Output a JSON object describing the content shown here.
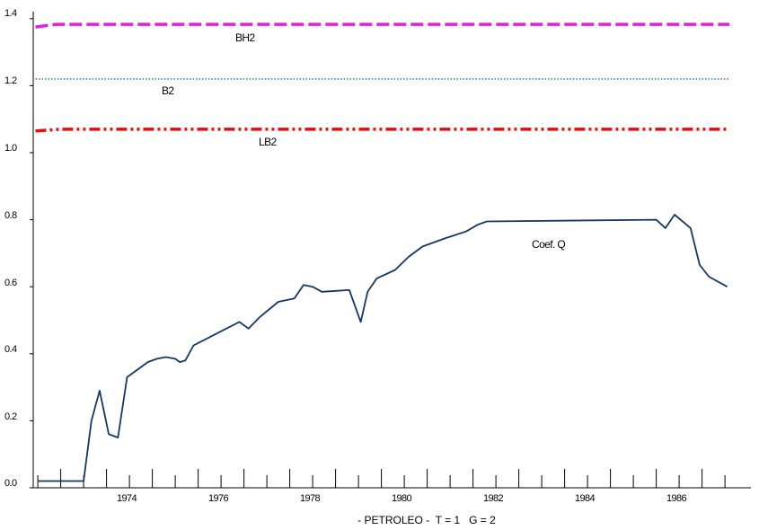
{
  "chart_data": {
    "type": "line",
    "title": "",
    "xlabel": "- PETROLEO -  T = 1   G = 2",
    "ylabel": "",
    "xlim": [
      1972.4,
      1987.6
    ],
    "ylim": [
      0.0,
      1.4
    ],
    "x_ticks": [
      "1974",
      "1976",
      "1978",
      "1980",
      "1982",
      "1984",
      "1986"
    ],
    "y_ticks": [
      "0.0",
      "0.2",
      "0.4",
      "0.6",
      "0.8",
      "1.0",
      "1.2",
      "1.4"
    ],
    "grid": false,
    "series": [
      {
        "name": "Coef. Q",
        "color": "#17375e",
        "style": "solid",
        "points": [
          [
            1972.5,
            0.02
          ],
          [
            1973.5,
            0.02
          ],
          [
            1973.67,
            0.2
          ],
          [
            1973.85,
            0.29
          ],
          [
            1974.05,
            0.16
          ],
          [
            1974.25,
            0.15
          ],
          [
            1974.45,
            0.33
          ],
          [
            1974.7,
            0.355
          ],
          [
            1974.9,
            0.375
          ],
          [
            1975.1,
            0.385
          ],
          [
            1975.3,
            0.39
          ],
          [
            1975.5,
            0.385
          ],
          [
            1975.6,
            0.375
          ],
          [
            1975.72,
            0.38
          ],
          [
            1975.9,
            0.425
          ],
          [
            1976.9,
            0.495
          ],
          [
            1977.1,
            0.475
          ],
          [
            1977.35,
            0.51
          ],
          [
            1977.75,
            0.555
          ],
          [
            1978.1,
            0.565
          ],
          [
            1978.3,
            0.605
          ],
          [
            1978.5,
            0.6
          ],
          [
            1978.7,
            0.585
          ],
          [
            1979.3,
            0.59
          ],
          [
            1979.55,
            0.495
          ],
          [
            1979.7,
            0.585
          ],
          [
            1979.9,
            0.625
          ],
          [
            1980.3,
            0.65
          ],
          [
            1980.6,
            0.69
          ],
          [
            1980.9,
            0.72
          ],
          [
            1981.4,
            0.745
          ],
          [
            1981.85,
            0.765
          ],
          [
            1982.1,
            0.785
          ],
          [
            1982.3,
            0.795
          ],
          [
            1986.0,
            0.8
          ],
          [
            1986.2,
            0.775
          ],
          [
            1986.4,
            0.815
          ],
          [
            1986.75,
            0.775
          ],
          [
            1986.95,
            0.665
          ],
          [
            1987.15,
            0.63
          ],
          [
            1987.55,
            0.6
          ]
        ]
      },
      {
        "name": "BH2",
        "color": "#e020e0",
        "style": "dashed",
        "points": [
          [
            1972.45,
            1.375
          ],
          [
            1972.9,
            1.383
          ],
          [
            1987.6,
            1.383
          ]
        ]
      },
      {
        "name": "B2",
        "color": "#2060c0",
        "style": "dotted",
        "points": [
          [
            1972.45,
            1.22
          ],
          [
            1987.6,
            1.22
          ]
        ]
      },
      {
        "name": "LB2",
        "color": "#e01010",
        "style": "dashdotdot",
        "points": [
          [
            1972.45,
            1.065
          ],
          [
            1973.0,
            1.07
          ],
          [
            1987.6,
            1.07
          ]
        ]
      }
    ],
    "annotations": [
      {
        "text": "BH2",
        "x": 1977.45,
        "y": 1.327
      },
      {
        "text": "B2",
        "x": 1975.3,
        "y": 1.153
      },
      {
        "text": "LB2",
        "x": 1977.55,
        "y": 0.986
      },
      {
        "text": "Coef. Q",
        "x": 1983.2,
        "y": 0.71
      }
    ]
  }
}
